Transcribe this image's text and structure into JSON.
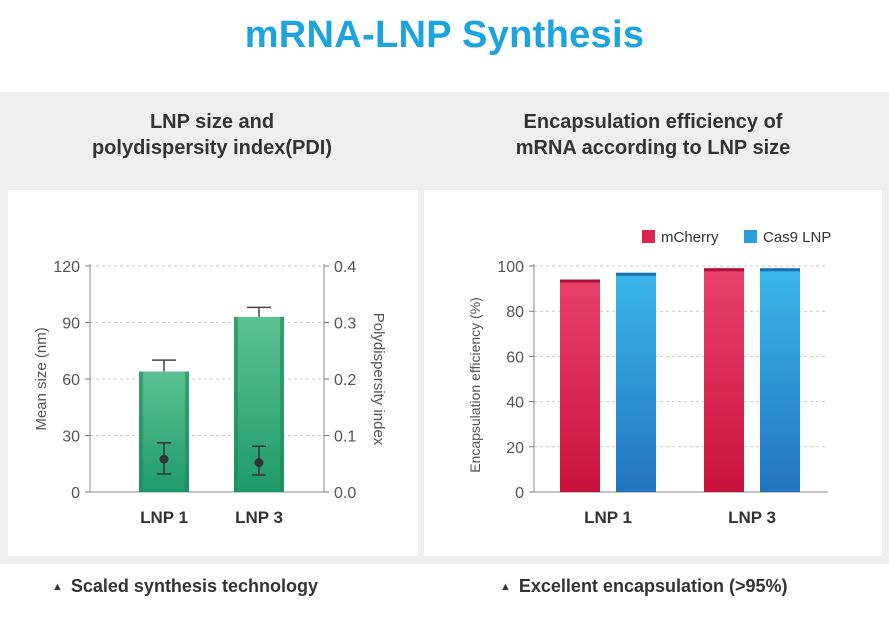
{
  "page": {
    "title": "mRNA-LNP Synthesis"
  },
  "left_panel": {
    "heading": "LNP size and\npolydispersity index(PDI)",
    "caption": "Scaled synthesis technology"
  },
  "right_panel": {
    "heading": "Encapsulation efficiency of\nmRNA according to LNP size",
    "caption": "Excellent encapsulation (>95%)"
  },
  "chart_data": [
    {
      "type": "bar",
      "categories": [
        "LNP 1",
        "LNP 3"
      ],
      "series": [
        {
          "values": [
            64,
            93
          ],
          "error_upper": [
            70,
            98
          ],
          "color": "#2fa97a"
        }
      ],
      "secondary_series": [
        {
          "values": [
            0.058,
            0.052
          ],
          "error_low": [
            0.032,
            0.03
          ],
          "error_high": [
            0.087,
            0.081
          ],
          "color": "#333333"
        }
      ],
      "xlabel": "",
      "ylabel": "Mean size (nm)",
      "ylim": [
        0,
        120
      ],
      "yticks": [
        "0",
        "30",
        "60",
        "90",
        "120"
      ],
      "y2label": "Polydispersity index",
      "y2lim": [
        0,
        0.4
      ],
      "y2ticks": [
        "0.0",
        "0.1",
        "0.2",
        "0.3",
        "0.4"
      ],
      "grid": true
    },
    {
      "type": "bar",
      "categories": [
        "LNP 1",
        "LNP 3"
      ],
      "series": [
        {
          "name": "mCherry",
          "values": [
            94,
            99
          ],
          "color": "#d9254f"
        },
        {
          "name": "Cas9 LNP",
          "values": [
            97,
            99
          ],
          "color": "#2b9fd9"
        }
      ],
      "xlabel": "",
      "ylabel": "Encapsulation efficiency (%)",
      "ylim": [
        0,
        100
      ],
      "yticks": [
        "0",
        "20",
        "40",
        "60",
        "80",
        "100"
      ],
      "legend": "top-right",
      "grid": true
    }
  ]
}
